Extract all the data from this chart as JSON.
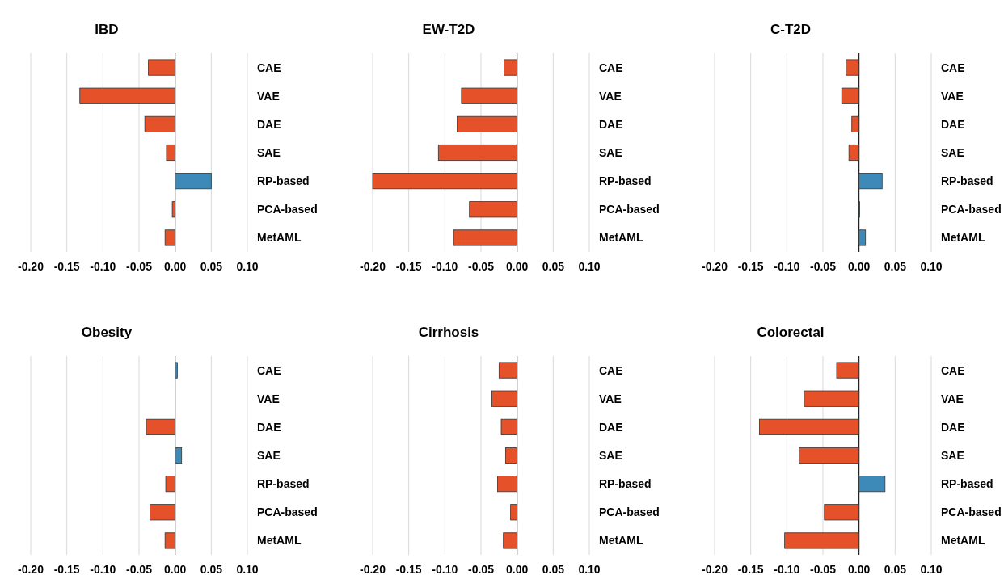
{
  "chart_data": [
    {
      "type": "bar",
      "orientation": "horizontal",
      "title": "IBD",
      "categories": [
        "CAE",
        "VAE",
        "DAE",
        "SAE",
        "RP-based",
        "PCA-based",
        "MetAML"
      ],
      "values": [
        -0.037,
        -0.132,
        -0.042,
        -0.012,
        0.05,
        -0.004,
        -0.014
      ],
      "colors": [
        "#e5522a",
        "#e5522a",
        "#e5522a",
        "#e5522a",
        "#3d8ab8",
        "#e5522a",
        "#e5522a"
      ],
      "xlim": [
        -0.2,
        0.1
      ],
      "xticks": [
        {
          "value": -0.2,
          "label": "-0.20"
        },
        {
          "value": -0.15,
          "label": "-0.15"
        },
        {
          "value": -0.1,
          "label": "-0.10"
        },
        {
          "value": -0.05,
          "label": "-0.05"
        },
        {
          "value": 0,
          "label": "0.00"
        },
        {
          "value": 0.05,
          "label": "0.05"
        },
        {
          "value": 0.1,
          "label": "0.10"
        }
      ],
      "grid": "x"
    },
    {
      "type": "bar",
      "orientation": "horizontal",
      "title": "EW-T2D",
      "categories": [
        "CAE",
        "VAE",
        "DAE",
        "SAE",
        "RP-based",
        "PCA-based",
        "MetAML"
      ],
      "values": [
        -0.018,
        -0.077,
        -0.083,
        -0.109,
        -0.2,
        -0.066,
        -0.088
      ],
      "colors": [
        "#e5522a",
        "#e5522a",
        "#e5522a",
        "#e5522a",
        "#e5522a",
        "#e5522a",
        "#e5522a"
      ],
      "xlim": [
        -0.2,
        0.1
      ],
      "xticks": [
        {
          "value": -0.2,
          "label": "-0.20"
        },
        {
          "value": -0.15,
          "label": "-0.15"
        },
        {
          "value": -0.1,
          "label": "-0.10"
        },
        {
          "value": -0.05,
          "label": "-0.05"
        },
        {
          "value": 0,
          "label": "0.00"
        },
        {
          "value": 0.05,
          "label": "0.05"
        },
        {
          "value": 0.1,
          "label": "0.10"
        }
      ],
      "grid": "x"
    },
    {
      "type": "bar",
      "orientation": "horizontal",
      "title": "C-T2D",
      "categories": [
        "CAE",
        "VAE",
        "DAE",
        "SAE",
        "RP-based",
        "PCA-based",
        "MetAML"
      ],
      "values": [
        -0.018,
        -0.024,
        -0.01,
        -0.014,
        0.032,
        0.001,
        0.009
      ],
      "colors": [
        "#e5522a",
        "#e5522a",
        "#e5522a",
        "#e5522a",
        "#3d8ab8",
        "#3d8ab8",
        "#3d8ab8"
      ],
      "xlim": [
        -0.2,
        0.1
      ],
      "xticks": [
        {
          "value": -0.2,
          "label": "-0.20"
        },
        {
          "value": -0.15,
          "label": "-0.15"
        },
        {
          "value": -0.1,
          "label": "-0.10"
        },
        {
          "value": -0.05,
          "label": "-0.05"
        },
        {
          "value": 0,
          "label": "0.00"
        },
        {
          "value": 0.05,
          "label": "0.05"
        },
        {
          "value": 0.1,
          "label": "0.10"
        }
      ],
      "grid": "x"
    },
    {
      "type": "bar",
      "orientation": "horizontal",
      "title": "Obesity",
      "categories": [
        "CAE",
        "VAE",
        "DAE",
        "SAE",
        "RP-based",
        "PCA-based",
        "MetAML"
      ],
      "values": [
        0.003,
        0,
        -0.04,
        0.009,
        -0.013,
        -0.035,
        -0.014
      ],
      "colors": [
        "#3d8ab8",
        "#e5522a",
        "#e5522a",
        "#3d8ab8",
        "#e5522a",
        "#e5522a",
        "#e5522a"
      ],
      "xlim": [
        -0.2,
        0.1
      ],
      "xticks": [
        {
          "value": -0.2,
          "label": "-0.20"
        },
        {
          "value": -0.15,
          "label": "-0.15"
        },
        {
          "value": -0.1,
          "label": "-0.10"
        },
        {
          "value": -0.05,
          "label": "-0.05"
        },
        {
          "value": 0,
          "label": "0.00"
        },
        {
          "value": 0.05,
          "label": "0.05"
        },
        {
          "value": 0.1,
          "label": "0.10"
        }
      ],
      "grid": "x"
    },
    {
      "type": "bar",
      "orientation": "horizontal",
      "title": "Cirrhosis",
      "categories": [
        "CAE",
        "VAE",
        "DAE",
        "SAE",
        "RP-based",
        "PCA-based",
        "MetAML"
      ],
      "values": [
        -0.025,
        -0.035,
        -0.022,
        -0.016,
        -0.027,
        -0.009,
        -0.019
      ],
      "colors": [
        "#e5522a",
        "#e5522a",
        "#e5522a",
        "#e5522a",
        "#e5522a",
        "#e5522a",
        "#e5522a"
      ],
      "xlim": [
        -0.2,
        0.1
      ],
      "xticks": [
        {
          "value": -0.2,
          "label": "-0.20"
        },
        {
          "value": -0.15,
          "label": "-0.15"
        },
        {
          "value": -0.1,
          "label": "-0.10"
        },
        {
          "value": -0.05,
          "label": "-0.05"
        },
        {
          "value": 0,
          "label": "0.00"
        },
        {
          "value": 0.05,
          "label": "0.05"
        },
        {
          "value": 0.1,
          "label": "0.10"
        }
      ],
      "grid": "x"
    },
    {
      "type": "bar",
      "orientation": "horizontal",
      "title": "Colorectal",
      "categories": [
        "CAE",
        "VAE",
        "DAE",
        "SAE",
        "RP-based",
        "PCA-based",
        "MetAML"
      ],
      "values": [
        -0.031,
        -0.076,
        -0.138,
        -0.083,
        0.036,
        -0.048,
        -0.103
      ],
      "colors": [
        "#e5522a",
        "#e5522a",
        "#e5522a",
        "#e5522a",
        "#3d8ab8",
        "#e5522a",
        "#e5522a"
      ],
      "xlim": [
        -0.2,
        0.1
      ],
      "xticks": [
        {
          "value": -0.2,
          "label": "-0.20"
        },
        {
          "value": -0.15,
          "label": "-0.15"
        },
        {
          "value": -0.1,
          "label": "-0.10"
        },
        {
          "value": -0.05,
          "label": "-0.05"
        },
        {
          "value": 0,
          "label": "0.00"
        },
        {
          "value": 0.05,
          "label": "0.05"
        },
        {
          "value": 0.1,
          "label": "0.10"
        }
      ],
      "grid": "x"
    }
  ]
}
